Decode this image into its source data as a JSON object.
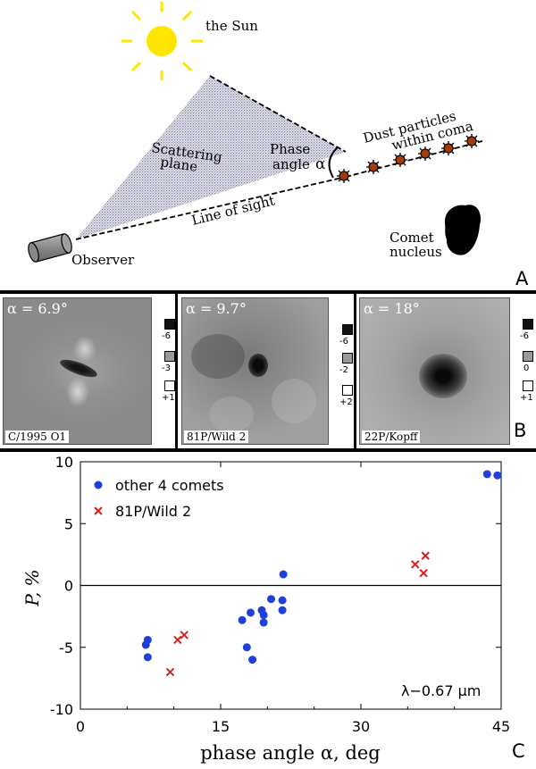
{
  "panel_a": {
    "letter": "A",
    "sun_label": "the Sun",
    "scattering_label_line1": "Scattering",
    "scattering_label_line2": "plane",
    "phase_label_line1": "Phase",
    "phase_label_line2": "angle",
    "alpha_symbol": "α",
    "dust_label_line1": "Dust particles",
    "dust_label_line2": "within coma",
    "line_of_sight_label": "Line of sight",
    "comet_label_line1": "Comet",
    "comet_label_line2": "nucleus",
    "observer_label": "Observer"
  },
  "panel_b": {
    "letter": "B",
    "images": [
      {
        "alpha_label": "α = 6.9°",
        "name": "C/1995 O1",
        "scale": [
          "-6",
          "-3",
          "+1"
        ]
      },
      {
        "alpha_label": "α = 9.7°",
        "name": "81P/Wild 2",
        "scale": [
          "-6",
          "-2",
          "+2"
        ]
      },
      {
        "alpha_label": "α = 18°",
        "name": "22P/Kopff",
        "scale": [
          "-6",
          "0",
          "+1"
        ]
      }
    ]
  },
  "panel_c": {
    "letter": "C",
    "wavelength_label": "λ−0.67 μm",
    "colors": {
      "blue": "#1f3fd8",
      "red": "#e01b1b"
    }
  },
  "chart_data": {
    "type": "scatter",
    "title": "",
    "xlabel": "phase angle α, deg",
    "ylabel": "P, %",
    "xlim": [
      0,
      45
    ],
    "ylim": [
      -10,
      10
    ],
    "xticks": [
      "0",
      "15",
      "30",
      "45"
    ],
    "yticks": [
      "10",
      "5",
      "0",
      "-5",
      "-10"
    ],
    "grid": false,
    "legend": "top-left",
    "series": [
      {
        "name": "other 4 comets",
        "marker": "circle",
        "points": [
          [
            7.0,
            -4.8
          ],
          [
            7.2,
            -4.4
          ],
          [
            7.2,
            -5.8
          ],
          [
            17.3,
            -2.8
          ],
          [
            17.8,
            -5.0
          ],
          [
            18.2,
            -2.2
          ],
          [
            18.4,
            -6.0
          ],
          [
            19.4,
            -2.0
          ],
          [
            19.6,
            -2.4
          ],
          [
            19.6,
            -3.0
          ],
          [
            20.4,
            -1.1
          ],
          [
            21.6,
            -1.2
          ],
          [
            21.6,
            -2.0
          ],
          [
            21.7,
            0.9
          ],
          [
            43.5,
            9.0
          ],
          [
            44.6,
            8.9
          ]
        ]
      },
      {
        "name": "81P/Wild 2",
        "marker": "x",
        "points": [
          [
            9.6,
            -7.0
          ],
          [
            10.4,
            -4.4
          ],
          [
            11.1,
            -4.0
          ],
          [
            35.8,
            1.7
          ],
          [
            36.7,
            1.0
          ],
          [
            36.9,
            2.4
          ]
        ]
      }
    ]
  }
}
